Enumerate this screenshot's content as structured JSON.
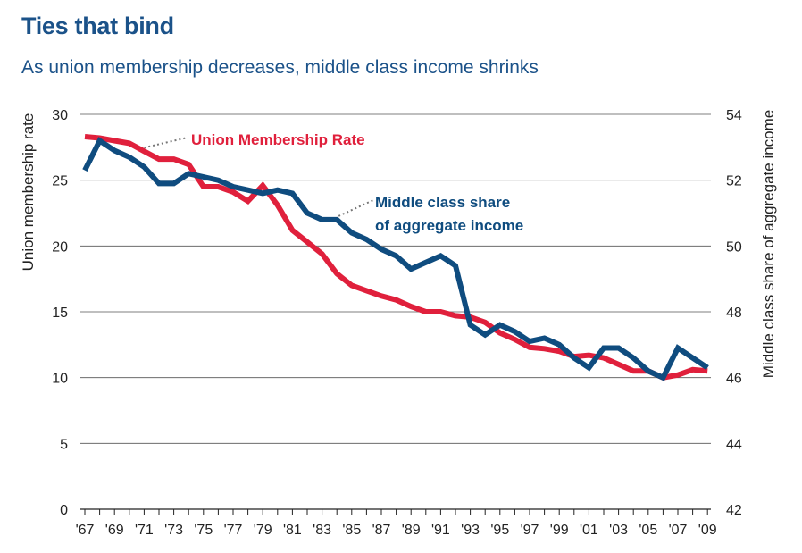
{
  "chart_data": {
    "type": "line",
    "title": "Ties that bind",
    "subtitle": "As union membership decreases, middle class income shrinks",
    "xlabel": "",
    "ylabel": "Union membership rate",
    "y2label": "Middle class share of aggregate income",
    "ylim": [
      0,
      30
    ],
    "y2lim": [
      42,
      54
    ],
    "yticks": [
      "0",
      "5",
      "10",
      "15",
      "20",
      "25",
      "30"
    ],
    "y2ticks": [
      "42",
      "44",
      "46",
      "48",
      "50",
      "52",
      "54"
    ],
    "xticks": [
      "'67",
      "'69",
      "'71",
      "'73",
      "'75",
      "'77",
      "'79",
      "'81",
      "'83",
      "'85",
      "'87",
      "'89",
      "'91",
      "'93",
      "'95",
      "'97",
      "'99",
      "'01",
      "'03",
      "'05",
      "'07",
      "'09"
    ],
    "x": [
      1967,
      1968,
      1969,
      1970,
      1971,
      1972,
      1973,
      1974,
      1975,
      1976,
      1977,
      1978,
      1979,
      1980,
      1981,
      1982,
      1983,
      1984,
      1985,
      1986,
      1987,
      1988,
      1989,
      1990,
      1991,
      1992,
      1993,
      1994,
      1995,
      1996,
      1997,
      1998,
      1999,
      2000,
      2001,
      2002,
      2003,
      2004,
      2005,
      2006,
      2007,
      2008,
      2009
    ],
    "grid": true,
    "colors": {
      "union": "#e0203c",
      "middle": "#0f4c7f",
      "title": "#1b5289",
      "grid": "#555555",
      "pointer": "#777777"
    },
    "series": [
      {
        "name": "Union Membership Rate",
        "axis": "left",
        "color": "#e0203c",
        "values": [
          28.3,
          28.2,
          28.0,
          27.8,
          27.2,
          26.6,
          26.6,
          26.2,
          24.5,
          24.5,
          24.1,
          23.4,
          24.6,
          23.1,
          21.2,
          20.3,
          19.4,
          17.9,
          17.0,
          16.6,
          16.2,
          15.9,
          15.4,
          15.0,
          15.0,
          14.7,
          14.6,
          14.2,
          13.4,
          12.9,
          12.3,
          12.2,
          12.0,
          11.6,
          11.7,
          11.5,
          11.0,
          10.5,
          10.5,
          10.0,
          10.2,
          10.6,
          10.5
        ]
      },
      {
        "name": "Middle class share of aggregate income",
        "axis": "right",
        "color": "#0f4c7f",
        "values": [
          52.3,
          53.2,
          52.9,
          52.7,
          52.4,
          51.9,
          51.9,
          52.2,
          52.1,
          52.0,
          51.8,
          51.7,
          51.6,
          51.7,
          51.6,
          51.0,
          50.8,
          50.8,
          50.4,
          50.2,
          49.9,
          49.7,
          49.3,
          49.5,
          49.7,
          49.4,
          47.6,
          47.3,
          47.6,
          47.4,
          47.1,
          47.2,
          47.0,
          46.6,
          46.3,
          46.9,
          46.9,
          46.6,
          46.2,
          46.0,
          46.9,
          46.6,
          46.3
        ]
      }
    ],
    "annotations": [
      {
        "text": "Union Membership Rate",
        "series": 0
      },
      {
        "text": "Middle class share",
        "text2": "of aggregate income",
        "series": 1
      }
    ]
  }
}
